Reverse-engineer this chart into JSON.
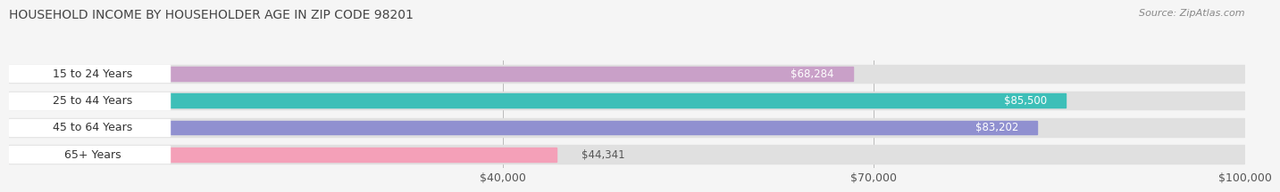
{
  "title": "HOUSEHOLD INCOME BY HOUSEHOLDER AGE IN ZIP CODE 98201",
  "source": "Source: ZipAtlas.com",
  "categories": [
    "15 to 24 Years",
    "25 to 44 Years",
    "45 to 64 Years",
    "65+ Years"
  ],
  "values": [
    68284,
    85500,
    83202,
    44341
  ],
  "labels": [
    "$68,284",
    "$85,500",
    "$83,202",
    "$44,341"
  ],
  "bar_colors": [
    "#c9a0c8",
    "#3dbfb8",
    "#9090d0",
    "#f4a0b8"
  ],
  "background_color": "#f5f5f5",
  "bg_bar_color": "#e0e0e0",
  "xlim_min": 0,
  "xlim_max": 100000,
  "xticks": [
    40000,
    70000,
    100000
  ],
  "xtick_labels": [
    "$40,000",
    "$70,000",
    "$100,000"
  ],
  "title_fontsize": 10,
  "source_fontsize": 8,
  "tick_fontsize": 9,
  "bar_label_fontsize": 8.5,
  "category_fontsize": 9
}
